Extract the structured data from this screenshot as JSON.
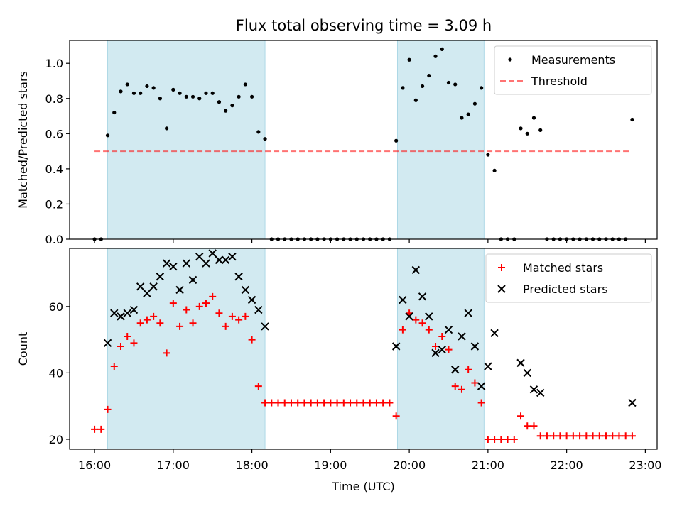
{
  "title": "Flux total observing time = 3.09 h",
  "colors": {
    "shade": "#add8e6",
    "measurement": "#000000",
    "threshold": "#ff0000",
    "matched": "#ff0000",
    "predicted": "#000000"
  },
  "chart_data": [
    {
      "type": "scatter",
      "ylabel": "Matched/Predicted stars",
      "ylim": [
        0,
        1.13
      ],
      "yticks": [
        0.0,
        0.2,
        0.4,
        0.6,
        0.8,
        1.0
      ],
      "ytick_labels": [
        "0.0",
        "0.2",
        "0.4",
        "0.6",
        "0.8",
        "1.0"
      ],
      "xlim": [
        "15:41",
        "23:09"
      ],
      "shaded_intervals": [
        [
          "16:10",
          "18:10"
        ],
        [
          "19:51",
          "20:57"
        ]
      ],
      "legend": {
        "placement": "top-right",
        "entries": [
          "Measurements",
          "Threshold"
        ]
      },
      "threshold": {
        "name": "Threshold",
        "value": 0.5,
        "x": [
          "16:00",
          "22:50"
        ]
      },
      "series": [
        {
          "name": "Measurements",
          "marker": "dot",
          "points": [
            [
              "16:00",
              0.0
            ],
            [
              "16:05",
              0.0
            ],
            [
              "16:10",
              0.59
            ],
            [
              "16:15",
              0.72
            ],
            [
              "16:20",
              0.84
            ],
            [
              "16:25",
              0.88
            ],
            [
              "16:30",
              0.83
            ],
            [
              "16:35",
              0.83
            ],
            [
              "16:40",
              0.87
            ],
            [
              "16:45",
              0.86
            ],
            [
              "16:50",
              0.8
            ],
            [
              "16:55",
              0.63
            ],
            [
              "17:00",
              0.85
            ],
            [
              "17:05",
              0.83
            ],
            [
              "17:10",
              0.81
            ],
            [
              "17:15",
              0.81
            ],
            [
              "17:20",
              0.8
            ],
            [
              "17:25",
              0.83
            ],
            [
              "17:30",
              0.83
            ],
            [
              "17:35",
              0.78
            ],
            [
              "17:40",
              0.73
            ],
            [
              "17:45",
              0.76
            ],
            [
              "17:50",
              0.81
            ],
            [
              "17:55",
              0.88
            ],
            [
              "18:00",
              0.81
            ],
            [
              "18:05",
              0.61
            ],
            [
              "18:10",
              0.57
            ],
            [
              "18:15",
              0.0
            ],
            [
              "18:20",
              0.0
            ],
            [
              "18:25",
              0.0
            ],
            [
              "18:30",
              0.0
            ],
            [
              "18:35",
              0.0
            ],
            [
              "18:40",
              0.0
            ],
            [
              "18:45",
              0.0
            ],
            [
              "18:50",
              0.0
            ],
            [
              "18:55",
              0.0
            ],
            [
              "19:00",
              0.0
            ],
            [
              "19:05",
              0.0
            ],
            [
              "19:10",
              0.0
            ],
            [
              "19:15",
              0.0
            ],
            [
              "19:20",
              0.0
            ],
            [
              "19:25",
              0.0
            ],
            [
              "19:30",
              0.0
            ],
            [
              "19:35",
              0.0
            ],
            [
              "19:40",
              0.0
            ],
            [
              "19:45",
              0.0
            ],
            [
              "19:50",
              0.56
            ],
            [
              "19:55",
              0.86
            ],
            [
              "20:00",
              1.02
            ],
            [
              "20:05",
              0.79
            ],
            [
              "20:10",
              0.87
            ],
            [
              "20:15",
              0.93
            ],
            [
              "20:20",
              1.04
            ],
            [
              "20:25",
              1.08
            ],
            [
              "20:30",
              0.89
            ],
            [
              "20:35",
              0.88
            ],
            [
              "20:40",
              0.69
            ],
            [
              "20:45",
              0.71
            ],
            [
              "20:50",
              0.77
            ],
            [
              "20:55",
              0.86
            ],
            [
              "21:00",
              0.48
            ],
            [
              "21:05",
              0.39
            ],
            [
              "21:10",
              0.0
            ],
            [
              "21:15",
              0.0
            ],
            [
              "21:20",
              0.0
            ],
            [
              "21:25",
              0.63
            ],
            [
              "21:30",
              0.6
            ],
            [
              "21:35",
              0.69
            ],
            [
              "21:40",
              0.62
            ],
            [
              "21:45",
              0.0
            ],
            [
              "21:50",
              0.0
            ],
            [
              "21:55",
              0.0
            ],
            [
              "22:00",
              0.0
            ],
            [
              "22:05",
              0.0
            ],
            [
              "22:10",
              0.0
            ],
            [
              "22:15",
              0.0
            ],
            [
              "22:20",
              0.0
            ],
            [
              "22:25",
              0.0
            ],
            [
              "22:30",
              0.0
            ],
            [
              "22:35",
              0.0
            ],
            [
              "22:40",
              0.0
            ],
            [
              "22:45",
              0.0
            ],
            [
              "22:50",
              0.68
            ]
          ]
        }
      ]
    },
    {
      "type": "scatter",
      "ylabel": "Count",
      "xlabel": "Time (UTC)",
      "ylim": [
        17,
        77.5
      ],
      "yticks": [
        20,
        40,
        60
      ],
      "ytick_labels": [
        "20",
        "40",
        "60"
      ],
      "xlim": [
        "15:41",
        "23:09"
      ],
      "xticks": [
        "16:00",
        "17:00",
        "18:00",
        "19:00",
        "20:00",
        "21:00",
        "22:00",
        "23:00"
      ],
      "xtick_labels": [
        "16:00",
        "17:00",
        "18:00",
        "19:00",
        "20:00",
        "21:00",
        "22:00",
        "23:00"
      ],
      "shaded_intervals": [
        [
          "16:10",
          "18:10"
        ],
        [
          "19:51",
          "20:57"
        ]
      ],
      "legend": {
        "placement": "top-right",
        "entries": [
          "Matched stars",
          "Predicted stars"
        ]
      },
      "series": [
        {
          "name": "Matched stars",
          "marker": "plus",
          "points": [
            [
              "16:00",
              23
            ],
            [
              "16:05",
              23
            ],
            [
              "16:10",
              29
            ],
            [
              "16:15",
              42
            ],
            [
              "16:20",
              48
            ],
            [
              "16:25",
              51
            ],
            [
              "16:30",
              49
            ],
            [
              "16:35",
              55
            ],
            [
              "16:40",
              56
            ],
            [
              "16:45",
              57
            ],
            [
              "16:50",
              55
            ],
            [
              "16:55",
              46
            ],
            [
              "17:00",
              61
            ],
            [
              "17:05",
              54
            ],
            [
              "17:10",
              59
            ],
            [
              "17:15",
              55
            ],
            [
              "17:20",
              60
            ],
            [
              "17:25",
              61
            ],
            [
              "17:30",
              63
            ],
            [
              "17:35",
              58
            ],
            [
              "17:40",
              54
            ],
            [
              "17:45",
              57
            ],
            [
              "17:50",
              56
            ],
            [
              "17:55",
              57
            ],
            [
              "18:00",
              50
            ],
            [
              "18:05",
              36
            ],
            [
              "18:10",
              31
            ],
            [
              "18:15",
              31
            ],
            [
              "18:20",
              31
            ],
            [
              "18:25",
              31
            ],
            [
              "18:30",
              31
            ],
            [
              "18:35",
              31
            ],
            [
              "18:40",
              31
            ],
            [
              "18:45",
              31
            ],
            [
              "18:50",
              31
            ],
            [
              "18:55",
              31
            ],
            [
              "19:00",
              31
            ],
            [
              "19:05",
              31
            ],
            [
              "19:10",
              31
            ],
            [
              "19:15",
              31
            ],
            [
              "19:20",
              31
            ],
            [
              "19:25",
              31
            ],
            [
              "19:30",
              31
            ],
            [
              "19:35",
              31
            ],
            [
              "19:40",
              31
            ],
            [
              "19:45",
              31
            ],
            [
              "19:50",
              27
            ],
            [
              "19:55",
              53
            ],
            [
              "20:00",
              58
            ],
            [
              "20:05",
              56
            ],
            [
              "20:10",
              55
            ],
            [
              "20:15",
              53
            ],
            [
              "20:20",
              48
            ],
            [
              "20:25",
              51
            ],
            [
              "20:30",
              47
            ],
            [
              "20:35",
              36
            ],
            [
              "20:40",
              35
            ],
            [
              "20:45",
              41
            ],
            [
              "20:50",
              37
            ],
            [
              "20:55",
              31
            ],
            [
              "21:00",
              20
            ],
            [
              "21:05",
              20
            ],
            [
              "21:10",
              20
            ],
            [
              "21:15",
              20
            ],
            [
              "21:20",
              20
            ],
            [
              "21:25",
              27
            ],
            [
              "21:30",
              24
            ],
            [
              "21:35",
              24
            ],
            [
              "21:40",
              21
            ],
            [
              "21:45",
              21
            ],
            [
              "21:50",
              21
            ],
            [
              "21:55",
              21
            ],
            [
              "22:00",
              21
            ],
            [
              "22:05",
              21
            ],
            [
              "22:10",
              21
            ],
            [
              "22:15",
              21
            ],
            [
              "22:20",
              21
            ],
            [
              "22:25",
              21
            ],
            [
              "22:30",
              21
            ],
            [
              "22:35",
              21
            ],
            [
              "22:40",
              21
            ],
            [
              "22:45",
              21
            ],
            [
              "22:50",
              21
            ]
          ]
        },
        {
          "name": "Predicted stars",
          "marker": "cross",
          "points": [
            [
              "16:10",
              49
            ],
            [
              "16:15",
              58
            ],
            [
              "16:20",
              57
            ],
            [
              "16:25",
              58
            ],
            [
              "16:30",
              59
            ],
            [
              "16:35",
              66
            ],
            [
              "16:40",
              64
            ],
            [
              "16:45",
              66
            ],
            [
              "16:50",
              69
            ],
            [
              "16:55",
              73
            ],
            [
              "17:00",
              72
            ],
            [
              "17:05",
              65
            ],
            [
              "17:10",
              73
            ],
            [
              "17:15",
              68
            ],
            [
              "17:20",
              75
            ],
            [
              "17:25",
              73
            ],
            [
              "17:30",
              76
            ],
            [
              "17:35",
              74
            ],
            [
              "17:40",
              74
            ],
            [
              "17:45",
              75
            ],
            [
              "17:50",
              69
            ],
            [
              "17:55",
              65
            ],
            [
              "18:00",
              62
            ],
            [
              "18:05",
              59
            ],
            [
              "18:10",
              54
            ],
            [
              "19:50",
              48
            ],
            [
              "19:55",
              62
            ],
            [
              "20:00",
              57
            ],
            [
              "20:05",
              71
            ],
            [
              "20:10",
              63
            ],
            [
              "20:15",
              57
            ],
            [
              "20:20",
              46
            ],
            [
              "20:25",
              47
            ],
            [
              "20:30",
              53
            ],
            [
              "20:35",
              41
            ],
            [
              "20:40",
              51
            ],
            [
              "20:45",
              58
            ],
            [
              "20:50",
              48
            ],
            [
              "20:55",
              36
            ],
            [
              "21:00",
              42
            ],
            [
              "21:05",
              52
            ],
            [
              "21:25",
              43
            ],
            [
              "21:30",
              40
            ],
            [
              "21:35",
              35
            ],
            [
              "21:40",
              34
            ],
            [
              "22:50",
              31
            ]
          ]
        }
      ]
    }
  ]
}
